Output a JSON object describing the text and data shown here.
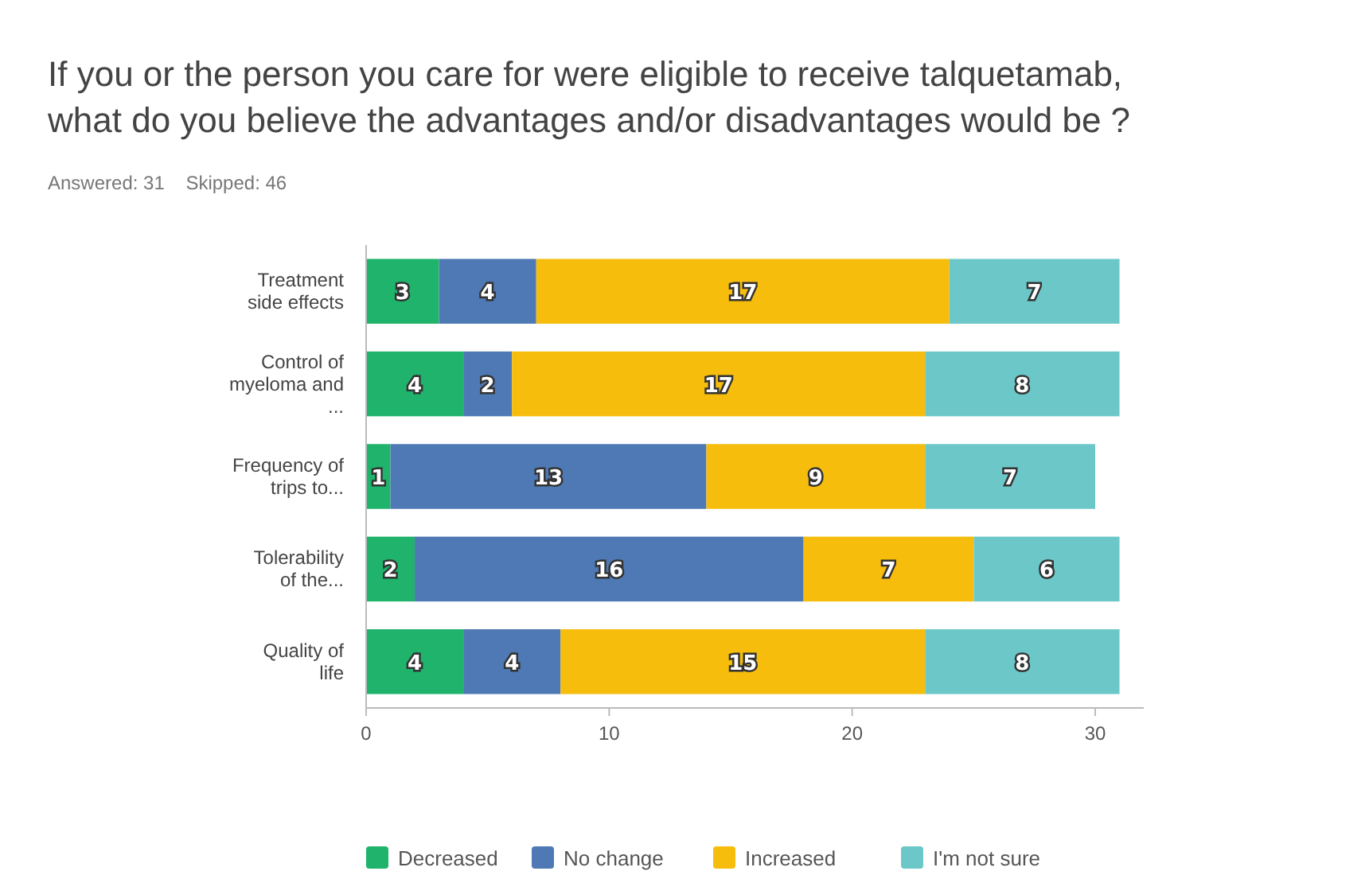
{
  "chart_data": {
    "type": "bar",
    "orientation": "horizontal",
    "stacked": true,
    "title": "If you or the person you care for were eligible to receive talquetamab, what do you believe the advantages and/or disadvantages would be ?",
    "subtitle": "Answered: 31    Skipped: 46",
    "categories": [
      "Treatment side effects",
      "Control of myeloma and ...",
      "Frequency of trips to...",
      "Tolerability of the...",
      "Quality of life"
    ],
    "series": [
      {
        "name": "Decreased",
        "color": "#20b36b",
        "values": [
          3,
          4,
          1,
          2,
          4
        ]
      },
      {
        "name": "No change",
        "color": "#4f79b4",
        "values": [
          4,
          2,
          13,
          16,
          4
        ]
      },
      {
        "name": "Increased",
        "color": "#f6bd0c",
        "values": [
          17,
          17,
          9,
          7,
          15
        ]
      },
      {
        "name": "I'm not sure",
        "color": "#6cc8c8",
        "values": [
          7,
          8,
          7,
          6,
          8
        ]
      }
    ],
    "xlim": [
      0,
      32
    ],
    "xticks": [
      0,
      10,
      20,
      30
    ],
    "data_labels": true,
    "legend": "bottom",
    "grid": false
  }
}
